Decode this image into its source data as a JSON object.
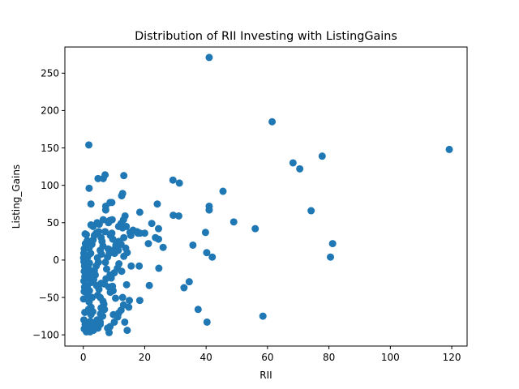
{
  "chart_data": {
    "type": "scatter",
    "title": "Distribution of RII Investing with ListingGains",
    "xlabel": "RII",
    "ylabel": "Listing_Gains",
    "xlim": [
      -6.0,
      125.0
    ],
    "ylim": [
      -115.0,
      285.0
    ],
    "xticks": [
      0,
      20,
      40,
      60,
      80,
      100,
      120
    ],
    "yticks": [
      -100,
      -50,
      0,
      50,
      100,
      150,
      200,
      250
    ],
    "grid": false,
    "legend": "none",
    "marker_color": "#1f77b4",
    "series": [
      {
        "points": [
          [
            41,
            271
          ],
          [
            61.5,
            185
          ],
          [
            119.2,
            148
          ],
          [
            77.8,
            139
          ],
          [
            68.3,
            130
          ],
          [
            70.5,
            122
          ],
          [
            74.2,
            66
          ],
          [
            49,
            51
          ],
          [
            56,
            42
          ],
          [
            45.5,
            92
          ],
          [
            41,
            72
          ],
          [
            41,
            67
          ],
          [
            29.2,
            107
          ],
          [
            31.3,
            103
          ],
          [
            24.1,
            75
          ],
          [
            22.3,
            49
          ],
          [
            24.5,
            42
          ],
          [
            21.2,
            22
          ],
          [
            23.5,
            30
          ],
          [
            24.5,
            28
          ],
          [
            26,
            17
          ],
          [
            24.6,
            -11
          ],
          [
            29.3,
            60
          ],
          [
            31.1,
            59
          ],
          [
            35.7,
            20
          ],
          [
            39.8,
            37
          ],
          [
            40.2,
            10
          ],
          [
            42,
            4
          ],
          [
            32.8,
            -37
          ],
          [
            34.5,
            -29
          ],
          [
            21.5,
            -34
          ],
          [
            37.4,
            -66
          ],
          [
            40.3,
            -83
          ],
          [
            58.5,
            -75
          ],
          [
            80.5,
            4
          ],
          [
            81.2,
            22
          ],
          [
            1.8,
            154
          ],
          [
            1.9,
            96
          ],
          [
            2.5,
            75
          ],
          [
            4.8,
            109
          ],
          [
            6.5,
            109
          ],
          [
            7.1,
            114
          ],
          [
            13.2,
            113
          ],
          [
            12.5,
            86
          ],
          [
            12.8,
            89
          ],
          [
            8.7,
            77
          ],
          [
            9.3,
            77
          ],
          [
            7.3,
            67
          ],
          [
            7.3,
            72
          ],
          [
            18.4,
            64
          ],
          [
            13.6,
            59
          ],
          [
            13.1,
            54
          ],
          [
            12.3,
            49
          ],
          [
            11.5,
            45
          ],
          [
            14,
            45
          ],
          [
            15.2,
            37
          ],
          [
            18.5,
            36
          ],
          [
            17.5,
            38
          ],
          [
            20,
            36
          ],
          [
            8.2,
            50
          ],
          [
            8.6,
            53
          ],
          [
            9.4,
            54
          ],
          [
            6.5,
            54
          ],
          [
            5.2,
            48
          ],
          [
            4.5,
            50
          ],
          [
            3.2,
            45
          ],
          [
            2.5,
            47
          ],
          [
            1,
            34
          ],
          [
            0.6,
            35
          ],
          [
            1.3,
            26
          ],
          [
            0.7,
            22
          ],
          [
            0.3,
            15
          ],
          [
            0.2,
            9
          ],
          [
            0.1,
            3
          ],
          [
            0.2,
            -2
          ],
          [
            0.4,
            -8
          ],
          [
            0.3,
            -15
          ],
          [
            0.5,
            -22
          ],
          [
            0.2,
            -28
          ],
          [
            0.4,
            -36
          ],
          [
            0.3,
            -42
          ],
          [
            0.1,
            -52
          ],
          [
            0.5,
            -70
          ],
          [
            0.2,
            -80
          ],
          [
            0.6,
            -86
          ],
          [
            0.3,
            -92
          ],
          [
            1,
            -96
          ],
          [
            1.2,
            -88
          ],
          [
            1.6,
            -94
          ],
          [
            2.2,
            -96
          ],
          [
            2.5,
            -90
          ],
          [
            3,
            -84
          ],
          [
            3.3,
            -94
          ],
          [
            3.9,
            -89
          ],
          [
            4.5,
            -80
          ],
          [
            5,
            -85
          ],
          [
            5.5,
            -86
          ],
          [
            2.3,
            -82
          ],
          [
            2.5,
            -73
          ],
          [
            3.1,
            -69
          ],
          [
            1.7,
            -66
          ],
          [
            2.5,
            -63
          ],
          [
            1.9,
            -56
          ],
          [
            2.9,
            -50
          ],
          [
            1.5,
            -47
          ],
          [
            2,
            -41
          ],
          [
            1.3,
            -35
          ],
          [
            2.5,
            -30
          ],
          [
            1.7,
            -24
          ],
          [
            2.3,
            -17
          ],
          [
            1.6,
            -10
          ],
          [
            2,
            -4
          ],
          [
            1.4,
            4
          ],
          [
            2.4,
            9
          ],
          [
            1.9,
            16
          ],
          [
            2.8,
            21
          ],
          [
            3.2,
            27
          ],
          [
            3.6,
            33
          ],
          [
            4.2,
            36
          ],
          [
            5,
            38
          ],
          [
            5.8,
            30
          ],
          [
            6.1,
            25
          ],
          [
            6.4,
            19
          ],
          [
            5.5,
            13
          ],
          [
            5.9,
            8
          ],
          [
            4.6,
            3
          ],
          [
            4.9,
            -3
          ],
          [
            4.2,
            -8
          ],
          [
            3.6,
            -14
          ],
          [
            3.9,
            -20
          ],
          [
            3.4,
            -26
          ],
          [
            4.3,
            -34
          ],
          [
            5.1,
            -39
          ],
          [
            4.7,
            -47
          ],
          [
            5.5,
            -50
          ],
          [
            5.8,
            -31
          ],
          [
            6.4,
            -55
          ],
          [
            6.7,
            -59
          ],
          [
            5.8,
            -64
          ],
          [
            6.9,
            -66
          ],
          [
            5.6,
            -72
          ],
          [
            6.3,
            -75
          ],
          [
            5.5,
            -83
          ],
          [
            4.8,
            -91
          ],
          [
            7.9,
            -91
          ],
          [
            8.4,
            -97
          ],
          [
            8.7,
            -89
          ],
          [
            9.8,
            -73
          ],
          [
            10.1,
            -83
          ],
          [
            11.2,
            -76
          ],
          [
            11.5,
            -71
          ],
          [
            12.3,
            -67
          ],
          [
            13.5,
            -83
          ],
          [
            14.3,
            -94
          ],
          [
            10.5,
            -51
          ],
          [
            8.8,
            -43
          ],
          [
            8.3,
            -36
          ],
          [
            9.1,
            -24
          ],
          [
            8.7,
            -20
          ],
          [
            10.1,
            -17
          ],
          [
            11.1,
            -11
          ],
          [
            11.6,
            -5
          ],
          [
            12.5,
            -15
          ],
          [
            14.1,
            -33
          ],
          [
            15,
            -54
          ],
          [
            15.6,
            -8
          ],
          [
            18.2,
            -8
          ],
          [
            18.4,
            -54
          ],
          [
            7.6,
            -12
          ],
          [
            7.2,
            -3
          ],
          [
            7.9,
            4
          ],
          [
            8.5,
            9
          ],
          [
            8.1,
            15
          ],
          [
            9.4,
            13
          ],
          [
            10.2,
            9
          ],
          [
            11.4,
            13
          ],
          [
            10.6,
            20
          ],
          [
            11.6,
            25
          ],
          [
            9.6,
            28
          ],
          [
            8.8,
            33
          ],
          [
            9.3,
            36
          ],
          [
            7.1,
            38
          ],
          [
            12.8,
            43
          ],
          [
            13.2,
            30
          ],
          [
            12.3,
            21
          ],
          [
            13.8,
            16
          ],
          [
            14.3,
            10
          ],
          [
            13.2,
            5
          ],
          [
            15.5,
            33
          ],
          [
            16.2,
            40
          ],
          [
            17.8,
            36
          ],
          [
            7.4,
            -25
          ],
          [
            6.9,
            -32
          ],
          [
            9.7,
            -41
          ],
          [
            9.5,
            -35
          ],
          [
            13.1,
            -60
          ],
          [
            14.8,
            -63
          ],
          [
            12.8,
            -50
          ]
        ]
      }
    ]
  }
}
